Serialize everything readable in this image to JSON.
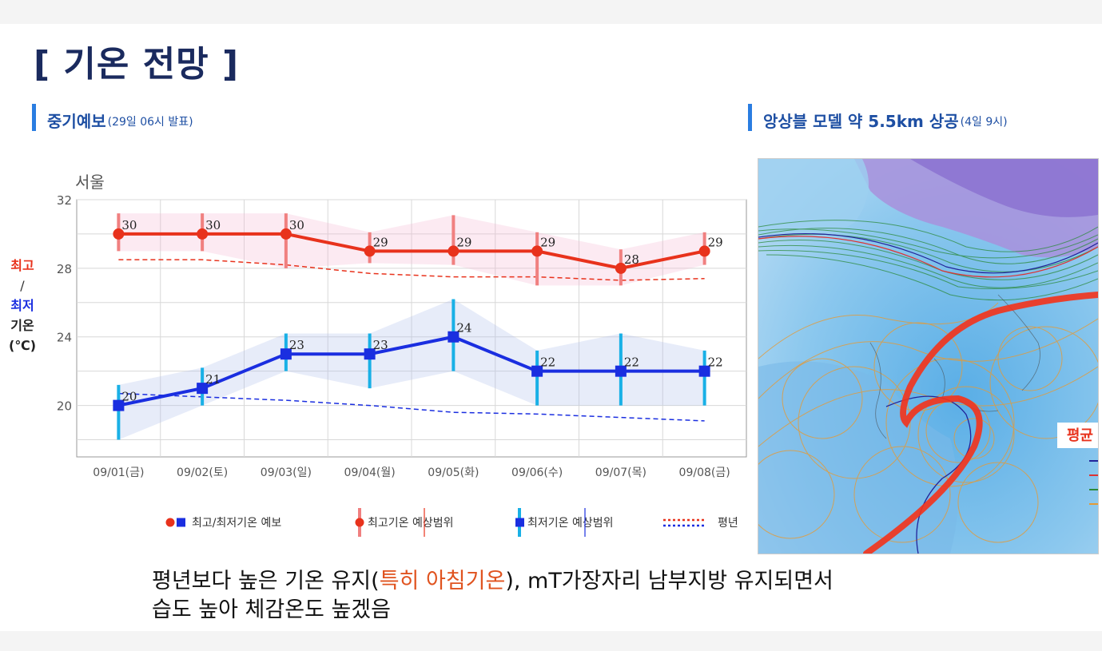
{
  "title": "[ 기온 전망 ]",
  "left_section": {
    "title": "중기예보",
    "subtitle": "(29일 06시 발표)"
  },
  "right_section": {
    "title": "앙상블 모델 약 5.5km 상공",
    "subtitle": "(4일 9시)"
  },
  "y_axis_label": {
    "max": "최고",
    "slash": "/",
    "min": "최저",
    "temp": "기온",
    "unit": "(℃)"
  },
  "colors": {
    "max": "#e8321c",
    "min": "#1a2ee0",
    "range_max": "#f08080",
    "range_min": "#19b0e6",
    "title": "#1a2a5e",
    "section": "#1e4fa3"
  },
  "chart_data": {
    "type": "line",
    "title": "서울",
    "categories": [
      "09/01(금)",
      "09/02(토)",
      "09/03(일)",
      "09/04(월)",
      "09/05(화)",
      "09/06(수)",
      "09/07(목)",
      "09/08(금)"
    ],
    "ylim": [
      17,
      32
    ],
    "yticks": [
      20,
      24,
      28,
      32
    ],
    "grid": true,
    "series": [
      {
        "name": "최고기온 예보",
        "values": [
          30,
          30,
          30,
          29,
          29,
          29,
          28,
          29
        ],
        "range_low": [
          29,
          29,
          28,
          28.3,
          28.2,
          27,
          27,
          28.2
        ],
        "range_high": [
          31.2,
          31.2,
          31.2,
          30.1,
          31.1,
          30.1,
          29.1,
          30.1
        ]
      },
      {
        "name": "최저기온 예보",
        "values": [
          20,
          21,
          23,
          23,
          24,
          22,
          22,
          22
        ],
        "range_low": [
          18,
          20,
          22,
          21,
          22,
          20,
          20,
          20
        ],
        "range_high": [
          21.2,
          22.2,
          24.2,
          24.2,
          26.2,
          23.2,
          24.2,
          23.2
        ]
      },
      {
        "name": "평년 최고",
        "values": [
          28.5,
          28.5,
          28.2,
          27.7,
          27.5,
          27.5,
          27.3,
          27.4
        ]
      },
      {
        "name": "평년 최저",
        "values": [
          20.7,
          20.5,
          20.3,
          20.0,
          19.6,
          19.5,
          19.3,
          19.1
        ]
      }
    ],
    "legend": {
      "item1": "최고/최저기온 예보",
      "item2": "최고기온 예상범위",
      "item3": "최저기온 예상범위",
      "item4": "평년"
    }
  },
  "map_label": "평균",
  "caption": {
    "line1_a": "평년보다 높은 기온 유지(",
    "line1_highlight": "특히 아침기온",
    "line1_b": "), mT가장자리 남부지방 유지되면서",
    "line2": "습도 높아 체감온도 높겠음"
  }
}
